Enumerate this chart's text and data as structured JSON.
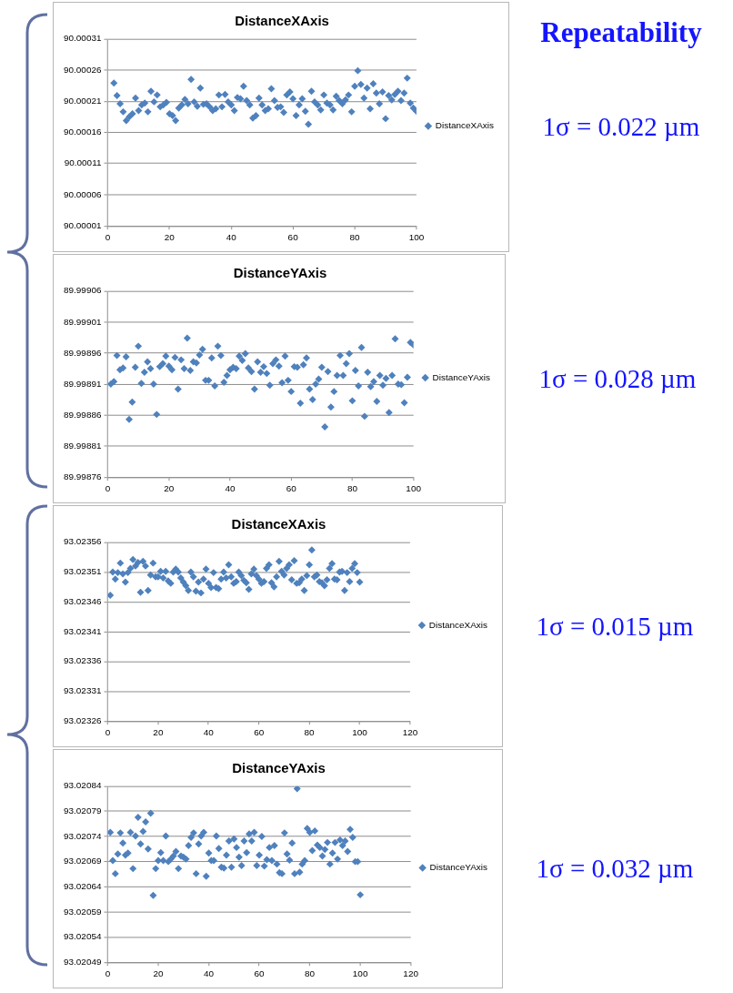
{
  "chart_data": [
    {
      "type": "scatter",
      "title": "DistanceXAxis",
      "annotations": [
        "Repeatability",
        "1σ = 0.022 µm"
      ],
      "xlim": [
        0,
        100
      ],
      "xticks": [
        0,
        20,
        40,
        60,
        80,
        100
      ],
      "ylim": [
        90.00001,
        90.00031
      ],
      "yticks": [
        90.00001,
        90.00006,
        90.00011,
        90.00016,
        90.00021,
        90.00026,
        90.00031
      ],
      "grid": "y",
      "legend": "right",
      "marker": "diamond",
      "x": [
        2,
        3,
        4,
        5,
        6,
        7,
        8,
        9,
        10,
        11,
        12,
        13,
        14,
        15,
        16,
        17,
        18,
        19,
        20,
        21,
        22,
        23,
        24,
        25,
        26,
        27,
        28,
        29,
        30,
        31,
        32,
        33,
        34,
        35,
        36,
        37,
        38,
        39,
        40,
        41,
        42,
        43,
        44,
        45,
        46,
        47,
        48,
        49,
        50,
        51,
        52,
        53,
        54,
        55,
        56,
        57,
        58,
        59,
        60,
        61,
        62,
        63,
        64,
        65,
        66,
        67,
        68,
        69,
        70,
        71,
        72,
        73,
        74,
        75,
        76,
        77,
        78,
        79,
        80,
        81,
        82,
        83,
        84,
        85,
        86,
        87,
        88,
        89,
        90,
        91,
        92,
        93,
        94,
        95,
        96,
        97,
        98,
        99,
        100
      ],
      "series": [
        {
          "name": "DistanceXAxis",
          "color": "#4f81bd",
          "values": [
            90.000239,
            90.000219,
            90.000206,
            90.000193,
            90.000179,
            90.000185,
            90.00019,
            90.000215,
            90.000195,
            90.000204,
            90.000207,
            90.000193,
            90.000226,
            90.000209,
            90.00022,
            90.000201,
            90.000204,
            90.000208,
            90.00019,
            90.000187,
            90.000179,
            90.000199,
            90.000204,
            90.000213,
            90.000206,
            90.000245,
            90.000209,
            90.000202,
            90.000231,
            90.000205,
            90.000206,
            90.000201,
            90.000195,
            90.000198,
            90.00022,
            90.000201,
            90.000221,
            90.000209,
            90.000204,
            90.000195,
            90.000216,
            90.000214,
            90.000234,
            90.000211,
            90.000204,
            90.000183,
            90.000187,
            90.000215,
            90.000204,
            90.000195,
            90.000198,
            90.00023,
            90.000211,
            90.0002,
            90.000201,
            90.000192,
            90.00022,
            90.000225,
            90.000214,
            90.000187,
            90.000204,
            90.000214,
            90.000194,
            90.000173,
            90.000226,
            90.000209,
            90.000204,
            90.000196,
            90.00022,
            90.000207,
            90.000204,
            90.000196,
            90.000218,
            90.000211,
            90.000206,
            90.000212,
            90.00022,
            90.000193,
            90.000234,
            90.000259,
            90.000237,
            90.000215,
            90.000231,
            90.000198,
            90.000238,
            90.000223,
            90.000206,
            90.000225,
            90.000182,
            90.000219,
            90.000212,
            90.000221,
            90.000226,
            90.000211,
            90.000223,
            90.000247,
            90.000207,
            90.000199,
            90.000194
          ]
        }
      ]
    },
    {
      "type": "scatter",
      "title": "DistanceYAxis",
      "annotations": [
        "1σ = 0.028 µm"
      ],
      "xlim": [
        0,
        100
      ],
      "xticks": [
        0,
        20,
        40,
        60,
        80,
        100
      ],
      "ylim": [
        89.99876,
        89.99906
      ],
      "yticks": [
        89.99876,
        89.99881,
        89.99886,
        89.99891,
        89.99896,
        89.99901,
        89.99906
      ],
      "grid": "y",
      "legend": "right",
      "marker": "diamond",
      "x": [
        1,
        2,
        3,
        4,
        5,
        6,
        7,
        8,
        9,
        10,
        11,
        12,
        13,
        14,
        15,
        16,
        17,
        18,
        19,
        20,
        21,
        22,
        23,
        24,
        25,
        26,
        27,
        28,
        29,
        30,
        31,
        32,
        33,
        34,
        35,
        36,
        37,
        38,
        39,
        40,
        41,
        42,
        43,
        44,
        45,
        46,
        47,
        48,
        49,
        50,
        51,
        52,
        53,
        54,
        55,
        56,
        57,
        58,
        59,
        60,
        61,
        62,
        63,
        64,
        65,
        66,
        67,
        68,
        69,
        70,
        71,
        72,
        73,
        74,
        75,
        76,
        77,
        78,
        79,
        80,
        81,
        82,
        83,
        84,
        85,
        86,
        87,
        88,
        89,
        90,
        91,
        92,
        93,
        94,
        95,
        96,
        97,
        98,
        99,
        100
      ],
      "series": [
        {
          "name": "DistanceYAxis",
          "color": "#4f81bd",
          "values": [
            89.99891,
            89.998914,
            89.998956,
            89.998933,
            89.998936,
            89.998954,
            89.998853,
            89.998881,
            89.998937,
            89.998971,
            89.998911,
            89.998929,
            89.998946,
            89.998935,
            89.99891,
            89.998861,
            89.998938,
            89.998943,
            89.998955,
            89.998939,
            89.998933,
            89.998953,
            89.998902,
            89.998949,
            89.998935,
            89.998984,
            89.998932,
            89.998946,
            89.998944,
            89.998957,
            89.998966,
            89.998916,
            89.998916,
            89.998952,
            89.998907,
            89.998971,
            89.998956,
            89.998913,
            89.998924,
            89.998933,
            89.998937,
            89.998935,
            89.998955,
            89.998948,
            89.998959,
            89.998936,
            89.99893,
            89.998902,
            89.998946,
            89.998929,
            89.998938,
            89.998927,
            89.998908,
            89.998943,
            89.998949,
            89.998939,
            89.998912,
            89.998955,
            89.998916,
            89.998898,
            89.998938,
            89.998937,
            89.998879,
            89.998941,
            89.998952,
            89.998902,
            89.998885,
            89.99891,
            89.998918,
            89.998937,
            89.998841,
            89.99893,
            89.998873,
            89.998898,
            89.998924,
            89.998956,
            89.998924,
            89.998943,
            89.998959,
            89.998883,
            89.998932,
            89.998907,
            89.998969,
            89.998858,
            89.998929,
            89.998906,
            89.998914,
            89.998882,
            89.998924,
            89.998908,
            89.998919,
            89.998864,
            89.998924,
            89.998983,
            89.99891,
            89.998909,
            89.99888,
            89.998921,
            89.998977,
            89.998973
          ]
        }
      ]
    },
    {
      "type": "scatter",
      "title": "DistanceXAxis",
      "annotations": [
        "1σ = 0.015 µm"
      ],
      "xlim": [
        0,
        120
      ],
      "xticks": [
        0,
        20,
        40,
        60,
        80,
        100,
        120
      ],
      "ylim": [
        93.02326,
        93.02356
      ],
      "yticks": [
        93.02326,
        93.02331,
        93.02336,
        93.02341,
        93.02346,
        93.02351,
        93.02356
      ],
      "grid": "y",
      "legend": "right",
      "marker": "diamond",
      "x": [
        1,
        2,
        3,
        4,
        5,
        6,
        7,
        8,
        9,
        10,
        11,
        12,
        13,
        14,
        15,
        16,
        17,
        18,
        19,
        20,
        21,
        22,
        23,
        24,
        25,
        26,
        27,
        28,
        29,
        30,
        31,
        32,
        33,
        34,
        35,
        36,
        37,
        38,
        39,
        40,
        41,
        42,
        43,
        44,
        45,
        46,
        47,
        48,
        49,
        50,
        51,
        52,
        53,
        54,
        55,
        56,
        57,
        58,
        59,
        60,
        61,
        62,
        63,
        64,
        65,
        66,
        67,
        68,
        69,
        70,
        71,
        72,
        73,
        74,
        75,
        76,
        77,
        78,
        79,
        80,
        81,
        82,
        83,
        84,
        85,
        86,
        87,
        88,
        89,
        90,
        91,
        92,
        93,
        94,
        95,
        96,
        97,
        98,
        99,
        100
      ],
      "series": [
        {
          "name": "DistanceXAxis",
          "color": "#4f81bd",
          "values": [
            93.023471,
            93.02351,
            93.023498,
            93.023509,
            93.023525,
            93.023507,
            93.023493,
            93.023509,
            93.023516,
            93.023531,
            93.02352,
            93.023526,
            93.023476,
            93.023528,
            93.02352,
            93.023479,
            93.023505,
            93.023525,
            93.023502,
            93.023502,
            93.023511,
            93.0235,
            93.023511,
            93.023495,
            93.023491,
            93.02351,
            93.023515,
            93.02351,
            93.0235,
            93.023493,
            93.023487,
            93.023479,
            93.02351,
            93.023502,
            93.023478,
            93.023493,
            93.023475,
            93.023498,
            93.023515,
            93.023491,
            93.023484,
            93.023509,
            93.023484,
            93.023482,
            93.023498,
            93.02351,
            93.0235,
            93.023522,
            93.023502,
            93.023491,
            93.023494,
            93.02351,
            93.023504,
            93.023496,
            93.023492,
            93.023481,
            93.023507,
            93.023515,
            93.023504,
            93.023498,
            93.023491,
            93.023494,
            93.023516,
            93.023522,
            93.023492,
            93.023485,
            93.023502,
            93.023528,
            93.023511,
            93.023505,
            93.023516,
            93.023522,
            93.023497,
            93.023529,
            93.023491,
            93.023492,
            93.023498,
            93.023479,
            93.023504,
            93.023522,
            93.023547,
            93.023502,
            93.023505,
            93.023494,
            93.023492,
            93.023487,
            93.023497,
            93.023516,
            93.023524,
            93.023498,
            93.023497,
            93.02351,
            93.023511,
            93.023479,
            93.023509,
            93.023494,
            93.023516,
            93.023524,
            93.023509,
            93.023493
          ]
        }
      ]
    },
    {
      "type": "scatter",
      "title": "DistanceYAxis",
      "annotations": [
        "1σ = 0.032 µm"
      ],
      "xlim": [
        0,
        120
      ],
      "xticks": [
        0,
        20,
        40,
        60,
        80,
        100,
        120
      ],
      "ylim": [
        93.02049,
        93.02084
      ],
      "yticks": [
        93.02049,
        93.02054,
        93.02059,
        93.02064,
        93.02069,
        93.02074,
        93.02079,
        93.02084
      ],
      "grid": "y",
      "legend": "right",
      "marker": "diamond",
      "x": [
        1,
        2,
        3,
        4,
        5,
        6,
        7,
        8,
        9,
        10,
        11,
        12,
        13,
        14,
        15,
        16,
        17,
        18,
        19,
        20,
        21,
        22,
        23,
        24,
        25,
        26,
        27,
        28,
        29,
        30,
        31,
        32,
        33,
        34,
        35,
        36,
        37,
        38,
        39,
        40,
        41,
        42,
        43,
        44,
        45,
        46,
        47,
        48,
        49,
        50,
        51,
        52,
        53,
        54,
        55,
        56,
        57,
        58,
        59,
        60,
        61,
        62,
        63,
        64,
        65,
        66,
        67,
        68,
        69,
        70,
        71,
        72,
        73,
        74,
        75,
        76,
        77,
        78,
        79,
        80,
        81,
        82,
        83,
        84,
        85,
        86,
        87,
        88,
        89,
        90,
        91,
        92,
        93,
        94,
        95,
        96,
        97,
        98,
        99,
        100
      ],
      "series": [
        {
          "name": "DistanceYAxis",
          "color": "#4f81bd",
          "values": [
            93.020748,
            93.020692,
            93.020666,
            93.020705,
            93.020747,
            93.020727,
            93.020703,
            93.020707,
            93.020748,
            93.020676,
            93.020741,
            93.020778,
            93.020725,
            93.02075,
            93.020769,
            93.020715,
            93.020786,
            93.020623,
            93.020676,
            93.020692,
            93.020708,
            93.020692,
            93.020741,
            93.02069,
            93.020695,
            93.020701,
            93.02071,
            93.020676,
            93.020701,
            93.020699,
            93.020695,
            93.020722,
            93.020738,
            93.020747,
            93.020666,
            93.020725,
            93.020741,
            93.020748,
            93.020661,
            93.020707,
            93.020692,
            93.020692,
            93.020741,
            93.020716,
            93.020679,
            93.020677,
            93.020703,
            93.020731,
            93.020679,
            93.020735,
            93.020718,
            93.020699,
            93.020682,
            93.020731,
            93.020708,
            93.020745,
            93.020731,
            93.020748,
            93.020682,
            93.020703,
            93.02074,
            93.020681,
            93.020694,
            93.020718,
            93.020692,
            93.020722,
            93.020685,
            93.020668,
            93.020666,
            93.020747,
            93.020705,
            93.020693,
            93.020727,
            93.020666,
            93.020835,
            93.020669,
            93.020685,
            93.020692,
            93.020756,
            93.020748,
            93.020712,
            93.020751,
            93.020723,
            93.020718,
            93.020701,
            93.020714,
            93.020728,
            93.020685,
            93.020707,
            93.020728,
            93.020695,
            93.020733,
            93.020722,
            93.020731,
            93.02071,
            93.020754,
            93.020738,
            93.02069,
            93.02069,
            93.020624
          ]
        }
      ]
    }
  ]
}
